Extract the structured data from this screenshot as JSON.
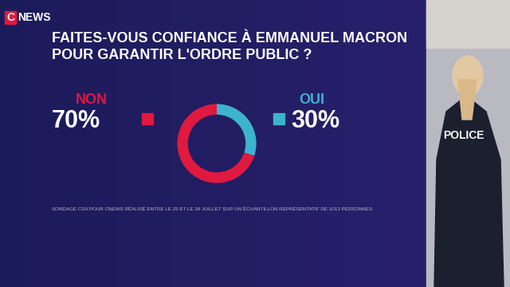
{
  "channel": {
    "mark": "C",
    "name": "NEWS"
  },
  "photo_text": "POLICE",
  "chart_data": {
    "type": "donut",
    "title": "FAITES-VOUS CONFIANCE À EMMANUEL MACRON\nPOUR GARANTIR L'ORDRE PUBLIC ?",
    "categories": [
      "NON",
      "OUI"
    ],
    "values": [
      70,
      30
    ],
    "value_labels": [
      "70%",
      "30%"
    ],
    "colors": [
      "#e0193f",
      "#3cb4cf"
    ],
    "data_labels": true,
    "source": "SONDAGE CSA POUR CNEWS RÉALISÉ ENTRE LE 25 ET LE 26 JUILLET SUR UN ÉCHANTILLON REPRÉSENTATIF DE 1013 PERSONNES"
  }
}
